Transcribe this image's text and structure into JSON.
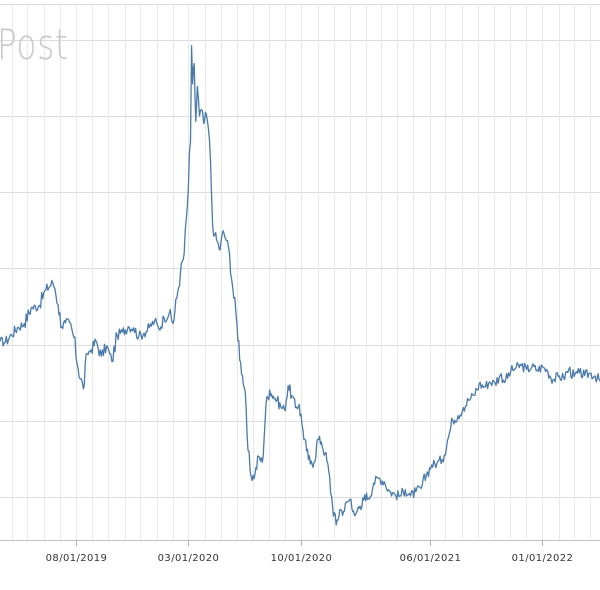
{
  "watermark": "Post",
  "chart_data": {
    "type": "line",
    "title": "",
    "xlabel": "",
    "ylabel": "",
    "grid": true,
    "legend": "none",
    "line_color": "#4a7aab",
    "grid_color": "#dcdcdc",
    "tick_label_color": "#333333",
    "x_range": [
      "2019-03-10",
      "2022-04-20"
    ],
    "y_range": [
      0,
      100
    ],
    "x_ticks": [
      {
        "date": "2019-08-01",
        "label": "08/01/2019"
      },
      {
        "date": "2020-03-01",
        "label": "03/01/2020"
      },
      {
        "date": "2020-10-01",
        "label": "10/01/2020"
      },
      {
        "date": "2021-06-01",
        "label": "06/01/2021"
      },
      {
        "date": "2022-01-01",
        "label": "01/01/2022"
      }
    ],
    "y_gridlines": [
      93.3,
      79.1,
      64.9,
      50.7,
      36.4,
      22.2,
      8.0
    ],
    "series": [
      {
        "x": [
          "2019-03-10",
          "2019-03-20",
          "2019-04-01",
          "2019-04-12",
          "2019-04-25",
          "2019-05-08",
          "2019-05-22",
          "2019-06-05",
          "2019-06-18",
          "2019-06-22",
          "2019-06-28",
          "2019-07-05",
          "2019-07-12",
          "2019-07-20",
          "2019-07-28",
          "2019-08-05",
          "2019-08-15",
          "2019-08-22",
          "2019-08-30",
          "2019-09-08",
          "2019-09-18",
          "2019-09-28",
          "2019-10-08",
          "2019-10-18",
          "2019-10-28",
          "2019-11-08",
          "2019-11-18",
          "2019-11-28",
          "2019-12-08",
          "2019-12-18",
          "2019-12-28",
          "2020-01-05",
          "2020-01-15",
          "2020-01-25",
          "2020-02-01",
          "2020-02-08",
          "2020-02-15",
          "2020-02-22",
          "2020-02-28",
          "2020-03-05",
          "2020-03-07",
          "2020-03-09",
          "2020-03-12",
          "2020-03-15",
          "2020-03-18",
          "2020-03-22",
          "2020-03-26",
          "2020-03-30",
          "2020-04-04",
          "2020-04-08",
          "2020-04-12",
          "2020-04-16",
          "2020-04-20",
          "2020-04-25",
          "2020-04-30",
          "2020-05-06",
          "2020-05-12",
          "2020-05-18",
          "2020-05-24",
          "2020-06-01",
          "2020-06-08",
          "2020-06-15",
          "2020-06-22",
          "2020-06-28",
          "2020-07-05",
          "2020-07-12",
          "2020-07-19",
          "2020-07-26",
          "2020-08-02",
          "2020-08-09",
          "2020-08-16",
          "2020-08-23",
          "2020-08-30",
          "2020-09-06",
          "2020-09-13",
          "2020-09-20",
          "2020-09-27",
          "2020-10-04",
          "2020-10-11",
          "2020-10-18",
          "2020-10-25",
          "2020-11-01",
          "2020-11-08",
          "2020-11-15",
          "2020-11-22",
          "2020-11-29",
          "2020-12-06",
          "2020-12-13",
          "2020-12-20",
          "2020-12-27",
          "2021-01-03",
          "2021-01-05",
          "2021-01-08",
          "2021-01-15",
          "2021-01-22",
          "2021-01-29",
          "2021-02-05",
          "2021-02-15",
          "2021-02-25",
          "2021-03-07",
          "2021-03-17",
          "2021-03-27",
          "2021-04-06",
          "2021-04-16",
          "2021-04-26",
          "2021-05-06",
          "2021-05-16",
          "2021-05-26",
          "2021-06-05",
          "2021-06-15",
          "2021-06-25",
          "2021-07-05",
          "2021-07-15",
          "2021-07-25",
          "2021-08-04",
          "2021-08-14",
          "2021-08-24",
          "2021-09-03",
          "2021-09-13",
          "2021-09-23",
          "2021-10-03",
          "2021-10-13",
          "2021-10-23",
          "2021-11-02",
          "2021-11-12",
          "2021-11-22",
          "2021-12-02",
          "2021-12-12",
          "2021-12-22",
          "2022-01-01",
          "2022-01-11",
          "2022-01-21",
          "2022-01-31",
          "2022-02-10",
          "2022-02-20",
          "2022-03-02",
          "2022-03-12",
          "2022-03-22",
          "2022-04-01",
          "2022-04-11",
          "2022-04-20"
        ],
        "y": [
          37.1,
          36.9,
          38.3,
          39.6,
          40.4,
          43.3,
          43.6,
          46.7,
          48.0,
          46.9,
          43.9,
          39.8,
          40.5,
          40.6,
          37.8,
          32.0,
          28.2,
          34.8,
          35.5,
          37.1,
          34.3,
          36.2,
          33.3,
          38.2,
          38.8,
          39.8,
          39.6,
          38.0,
          38.6,
          39.6,
          40.9,
          39.4,
          41.4,
          42.4,
          40.4,
          45.1,
          49.9,
          53.4,
          62.3,
          74.4,
          92.2,
          85.1,
          88.9,
          78.1,
          84.6,
          79.1,
          80.3,
          77.7,
          79.4,
          76.7,
          70.5,
          58.6,
          56.9,
          55.6,
          54.1,
          57.7,
          55.9,
          53.4,
          47.1,
          40.4,
          33.1,
          28.4,
          16.7,
          11.7,
          12.1,
          15.6,
          14.5,
          25.2,
          28.0,
          26.8,
          26.1,
          24.9,
          24.3,
          28.8,
          26.9,
          24.7,
          25.3,
          20.6,
          16.6,
          14.2,
          14.5,
          18.8,
          18.3,
          16.2,
          12.8,
          6.5,
          2.8,
          5.7,
          5.3,
          7.1,
          7.6,
          5.8,
          5.4,
          5.4,
          5.7,
          8.4,
          7.8,
          10.6,
          11.6,
          10.9,
          9.1,
          8.5,
          8.2,
          9.4,
          8.2,
          9.0,
          9.6,
          12.2,
          14.0,
          14.3,
          15.0,
          18.6,
          22.4,
          23.2,
          24.7,
          26.1,
          27.0,
          29.1,
          28.6,
          29.5,
          29.3,
          30.8,
          29.7,
          31.5,
          32.1,
          32.6,
          31.8,
          32.3,
          31.7,
          32.3,
          31.5,
          29.9,
          30.5,
          30.3,
          31.9,
          30.5,
          31.2,
          30.7,
          31.1,
          30.6,
          29.7
        ]
      }
    ]
  }
}
